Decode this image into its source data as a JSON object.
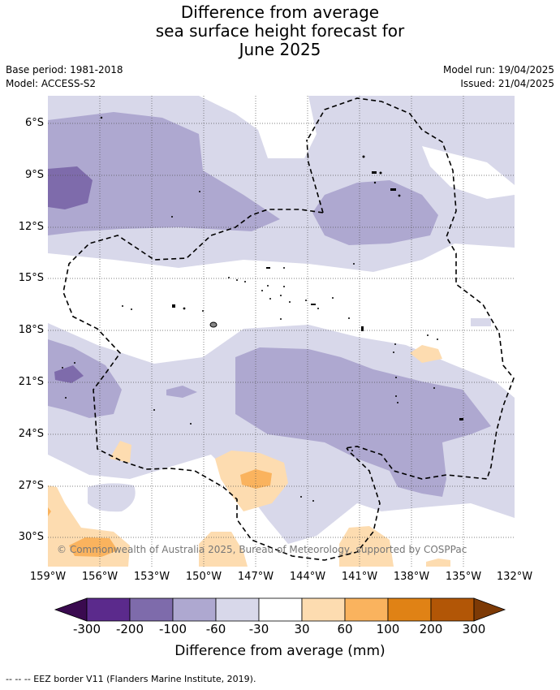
{
  "title": {
    "line1": "Difference from average",
    "line2": "sea surface height forecast for",
    "line3": "June 2025"
  },
  "meta": {
    "base_period": "Base period: 1981-2018",
    "model": "Model: ACCESS-S2",
    "model_run": "Model run: 19/04/2025",
    "issued": "Issued: 21/04/2025"
  },
  "map": {
    "lat_labels": [
      "6°S",
      "9°S",
      "12°S",
      "15°S",
      "18°S",
      "21°S",
      "24°S",
      "27°S",
      "30°S"
    ],
    "lon_labels": [
      "159°W",
      "156°W",
      "153°W",
      "150°W",
      "147°W",
      "144°W",
      "141°W",
      "138°W",
      "135°W",
      "132°W"
    ],
    "copyright": "© Commonwealth of Australia 2025, Bureau of Meteorology, supported by COSPPac"
  },
  "colorbar": {
    "ticks": [
      "-300",
      "-200",
      "-100",
      "-60",
      "-30",
      "30",
      "60",
      "100",
      "200",
      "300"
    ],
    "colors": [
      "#3a0a4f",
      "#5b2a8c",
      "#7e6bab",
      "#aea8d0",
      "#d8d8ea",
      "#ffffff",
      "#fddcb0",
      "#fab35e",
      "#e08215",
      "#b25606",
      "#7d3a06"
    ],
    "label": "Difference from average (mm)"
  },
  "footer": "--  --  -- EEZ border V11 (Flanders Marine Institute, 2019)."
}
